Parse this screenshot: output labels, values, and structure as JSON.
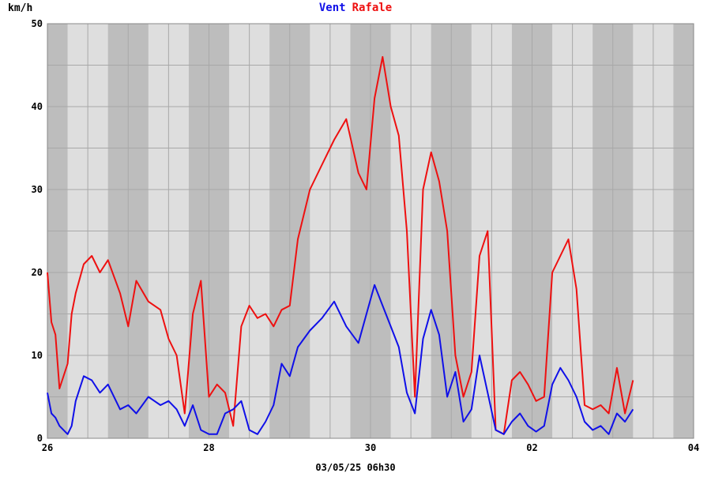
{
  "chart_data": {
    "type": "line",
    "ylabel": "km/h",
    "title_parts": [
      {
        "text": "Vent",
        "color": "#1010e8"
      },
      {
        "text": "Rafale",
        "color": "#ee1010"
      }
    ],
    "footer": "03/05/25 06h30",
    "ylim": [
      0,
      50
    ],
    "xlim": [
      0,
      8
    ],
    "y_ticks": [
      0,
      10,
      20,
      30,
      40,
      50
    ],
    "y_tick_labels": [
      "0",
      "10",
      "20",
      "30",
      "40",
      "50"
    ],
    "x_ticks": [
      0,
      2,
      4,
      6,
      8
    ],
    "x_tick_labels": [
      "26",
      "28",
      "30",
      "02",
      "04"
    ],
    "grid": true,
    "series": [
      {
        "name": "Vent",
        "color": "#1010e8",
        "x": [
          0,
          0.05,
          0.1,
          0.15,
          0.25,
          0.3,
          0.35,
          0.45,
          0.55,
          0.65,
          0.75,
          0.9,
          1.0,
          1.1,
          1.25,
          1.4,
          1.5,
          1.6,
          1.7,
          1.8,
          1.9,
          2.0,
          2.1,
          2.2,
          2.3,
          2.4,
          2.5,
          2.6,
          2.7,
          2.8,
          2.9,
          3.0,
          3.1,
          3.25,
          3.4,
          3.55,
          3.7,
          3.85,
          3.95,
          4.05,
          4.15,
          4.25,
          4.35,
          4.45,
          4.55,
          4.65,
          4.75,
          4.85,
          4.95,
          5.05,
          5.15,
          5.25,
          5.35,
          5.45,
          5.55,
          5.65,
          5.75,
          5.85,
          5.95,
          6.05,
          6.15,
          6.25,
          6.35,
          6.45,
          6.55,
          6.65,
          6.75,
          6.85,
          6.95,
          7.05,
          7.15,
          7.25
        ],
        "y": [
          5.5,
          3.0,
          2.5,
          1.5,
          0.5,
          1.5,
          4.5,
          7.5,
          7.0,
          5.5,
          6.5,
          3.5,
          4.0,
          3.0,
          5.0,
          4.0,
          4.5,
          3.5,
          1.5,
          4.0,
          1.0,
          0.5,
          0.5,
          3.0,
          3.5,
          4.5,
          1.0,
          0.5,
          2.0,
          4.0,
          9.0,
          7.5,
          11.0,
          13.0,
          14.5,
          16.5,
          13.5,
          11.5,
          15.0,
          18.5,
          16.0,
          13.5,
          11.0,
          5.5,
          3.0,
          12.0,
          15.5,
          12.5,
          5.0,
          8.0,
          2.0,
          3.5,
          10.0,
          5.5,
          1.0,
          0.5,
          2.0,
          3.0,
          1.5,
          0.8,
          1.5,
          6.5,
          8.5,
          7.0,
          5.0,
          2.0,
          1.0,
          1.5,
          0.5,
          3.0,
          2.0,
          3.5
        ]
      },
      {
        "name": "Rafale",
        "color": "#ee1010",
        "x": [
          0,
          0.05,
          0.1,
          0.15,
          0.25,
          0.3,
          0.35,
          0.45,
          0.55,
          0.65,
          0.75,
          0.9,
          1.0,
          1.1,
          1.25,
          1.4,
          1.5,
          1.6,
          1.7,
          1.8,
          1.9,
          2.0,
          2.1,
          2.2,
          2.3,
          2.4,
          2.5,
          2.6,
          2.7,
          2.8,
          2.9,
          3.0,
          3.1,
          3.25,
          3.4,
          3.55,
          3.7,
          3.85,
          3.95,
          4.05,
          4.15,
          4.25,
          4.35,
          4.45,
          4.55,
          4.65,
          4.75,
          4.85,
          4.95,
          5.05,
          5.15,
          5.25,
          5.35,
          5.45,
          5.55,
          5.65,
          5.75,
          5.85,
          5.95,
          6.05,
          6.15,
          6.25,
          6.35,
          6.45,
          6.55,
          6.65,
          6.75,
          6.85,
          6.95,
          7.05,
          7.15,
          7.25
        ],
        "y": [
          20.0,
          14.0,
          12.5,
          6.0,
          9.0,
          15.0,
          17.5,
          21.0,
          22.0,
          20.0,
          21.5,
          17.5,
          13.5,
          19.0,
          16.5,
          15.5,
          12.0,
          10.0,
          3.0,
          15.0,
          19.0,
          5.0,
          6.5,
          5.5,
          1.5,
          13.5,
          16.0,
          14.5,
          15.0,
          13.5,
          15.5,
          16.0,
          24.0,
          30.0,
          33.0,
          36.0,
          38.5,
          32.0,
          30.0,
          41.0,
          46.0,
          40.0,
          36.5,
          25.0,
          5.0,
          30.0,
          34.5,
          31.0,
          25.0,
          10.0,
          5.0,
          8.0,
          22.0,
          25.0,
          1.0,
          0.5,
          7.0,
          8.0,
          6.5,
          4.5,
          5.0,
          20.0,
          22.0,
          24.0,
          18.0,
          4.0,
          3.5,
          4.0,
          3.0,
          8.5,
          3.0,
          7.0
        ]
      }
    ]
  }
}
